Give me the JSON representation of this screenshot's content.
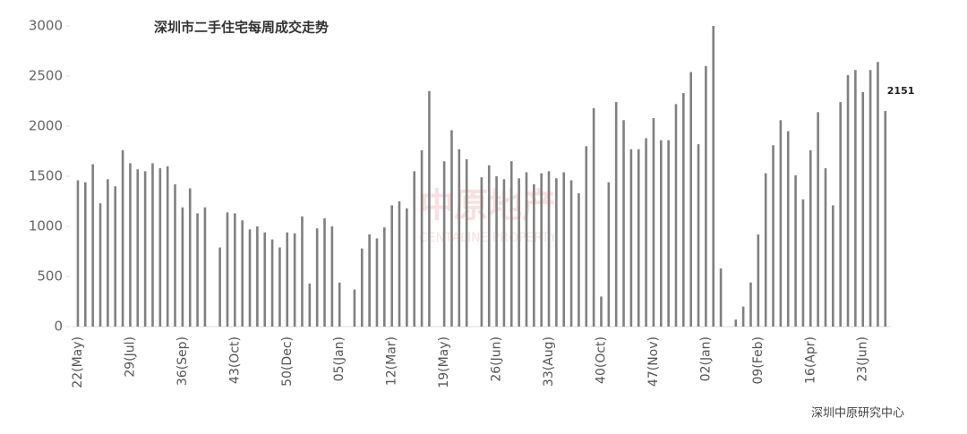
{
  "chart_data": {
    "type": "bar",
    "title": "深圳市二手住宅每周成交走势",
    "source": "深圳中原研究中心",
    "watermark": "中原地产",
    "watermark_sub": "CENTALINE PROPERTY",
    "color": "#808080",
    "categories": [
      "22(May)",
      null,
      null,
      null,
      null,
      null,
      null,
      "29(Jul)",
      null,
      null,
      null,
      null,
      null,
      null,
      "36(Sep)",
      null,
      null,
      null,
      null,
      null,
      null,
      "43(Oct)",
      null,
      null,
      null,
      null,
      null,
      null,
      "50(Dec)",
      null,
      null,
      null,
      null,
      null,
      null,
      "05(Jan)",
      null,
      null,
      null,
      null,
      null,
      null,
      "12(Mar)",
      null,
      null,
      null,
      null,
      null,
      null,
      "19(May)",
      null,
      null,
      null,
      null,
      null,
      null,
      "26(Jun)",
      null,
      null,
      null,
      null,
      null,
      null,
      "33(Aug)",
      null,
      null,
      null,
      null,
      null,
      null,
      "40(Oct)",
      null,
      null,
      null,
      null,
      null,
      null,
      "47(Nov)",
      null,
      null,
      null,
      null,
      null,
      null,
      "02(Jan)",
      null,
      null,
      null,
      null,
      null,
      null,
      "09(Feb)",
      null,
      null,
      null,
      null,
      null,
      null,
      "16(Apr)",
      null,
      null,
      null,
      null,
      null,
      null,
      "23(Jun)",
      null,
      null,
      null
    ],
    "values": [
      1460,
      1440,
      1620,
      1230,
      1470,
      1400,
      1760,
      1630,
      1570,
      1550,
      1630,
      1580,
      1600,
      1420,
      1190,
      1380,
      1130,
      1190,
      null,
      790,
      1140,
      1130,
      1060,
      970,
      1000,
      940,
      870,
      790,
      940,
      930,
      1100,
      430,
      980,
      1080,
      1000,
      440,
      null,
      370,
      780,
      920,
      880,
      990,
      1210,
      1250,
      1180,
      1550,
      1760,
      2350,
      null,
      1650,
      1960,
      1770,
      1670,
      null,
      1490,
      1610,
      1500,
      1470,
      1650,
      1480,
      1540,
      1420,
      1530,
      1550,
      1480,
      1540,
      1460,
      1330,
      1800,
      2180,
      300,
      1440,
      2240,
      2060,
      1770,
      1770,
      1880,
      2080,
      1860,
      1860,
      2220,
      2330,
      2540,
      1820,
      2600,
      3000,
      580,
      null,
      70,
      200,
      440,
      920,
      1530,
      1810,
      2060,
      1950,
      1510,
      1270,
      1760,
      2140,
      1580,
      1210,
      2240,
      2510,
      2560,
      2340,
      2560,
      2640,
      2151
    ],
    "ylim": [
      0,
      3000
    ],
    "yticks": [
      0,
      500,
      1000,
      1500,
      2000,
      2500,
      3000
    ]
  }
}
